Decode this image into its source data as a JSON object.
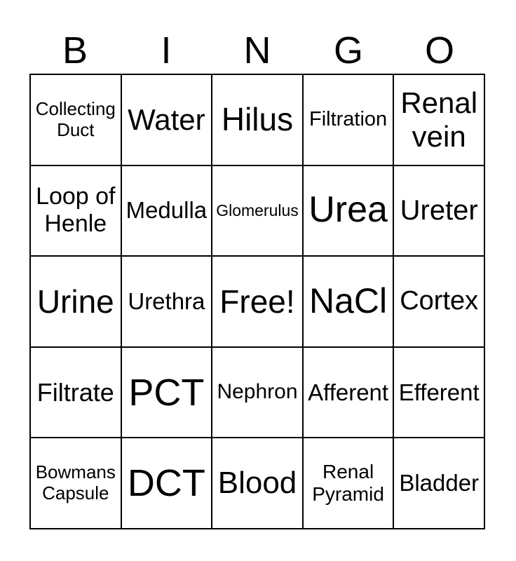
{
  "header": {
    "letters": [
      "B",
      "I",
      "N",
      "G",
      "O"
    ]
  },
  "board": {
    "free_space_label": "Free!",
    "cells": [
      {
        "label": "Collecting Duct",
        "size": 26
      },
      {
        "label": "Water",
        "size": 42
      },
      {
        "label": "Hilus",
        "size": 46
      },
      {
        "label": "Filtration",
        "size": 29
      },
      {
        "label": "Renal vein",
        "size": 42
      },
      {
        "label": "Loop of Henle",
        "size": 34
      },
      {
        "label": "Medulla",
        "size": 33
      },
      {
        "label": "Glomerulus",
        "size": 23
      },
      {
        "label": "Urea",
        "size": 52
      },
      {
        "label": "Ureter",
        "size": 40
      },
      {
        "label": "Urine",
        "size": 46
      },
      {
        "label": "Urethra",
        "size": 33
      },
      {
        "label": "Free!",
        "size": 46
      },
      {
        "label": "NaCl",
        "size": 50
      },
      {
        "label": "Cortex",
        "size": 38
      },
      {
        "label": "Filtrate",
        "size": 36
      },
      {
        "label": "PCT",
        "size": 54
      },
      {
        "label": "Nephron",
        "size": 30
      },
      {
        "label": "Afferent",
        "size": 33
      },
      {
        "label": "Efferent",
        "size": 33
      },
      {
        "label": "Bowmans Capsule",
        "size": 26
      },
      {
        "label": "DCT",
        "size": 54
      },
      {
        "label": "Blood",
        "size": 44
      },
      {
        "label": "Renal Pyramid",
        "size": 28
      },
      {
        "label": "Bladder",
        "size": 33
      }
    ]
  },
  "colors": {
    "text": "#000000",
    "border": "#000000",
    "background": "#ffffff"
  }
}
